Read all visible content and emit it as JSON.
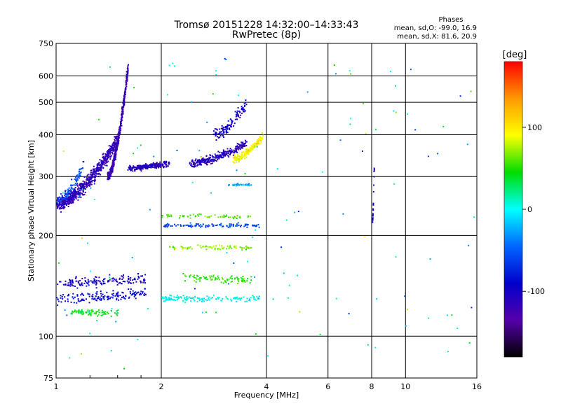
{
  "chart_data": {
    "type": "scatter",
    "title": "Tromsø 20151228 14:32:00–14:33:43",
    "subtitle": "RwPretec (8p)",
    "xlabel": "Frequency [MHz]",
    "ylabel": "Stationary phase Virtual Height [km]",
    "x_scale": "log",
    "y_scale": "log",
    "xlim": [
      1,
      16
    ],
    "ylim": [
      75,
      750
    ],
    "x_ticks": [
      1,
      2,
      4,
      6,
      8,
      10,
      16
    ],
    "y_ticks": [
      75,
      100,
      200,
      300,
      400,
      500,
      600,
      750
    ],
    "grid": true,
    "phases": {
      "heading": "Phases",
      "line1": "mean, sd,O: -99.0, 16.9",
      "line2": "mean, sd,X:  81.6, 20.9"
    },
    "colorbar": {
      "label": "[deg]",
      "range": [
        -180,
        180
      ],
      "ticks": [
        100,
        0,
        -100
      ],
      "colors": [
        "#ff0000",
        "#ff9900",
        "#ffff00",
        "#00dd00",
        "#00ffff",
        "#0066ff",
        "#0000cc",
        "#5500aa",
        "#000000"
      ]
    },
    "traces": [
      {
        "f": [
          1.0,
          1.5
        ],
        "h": [
          250,
          390
        ],
        "phase": -115,
        "spread": 0.07,
        "n": 700
      },
      {
        "f": [
          1.0,
          1.2
        ],
        "h": [
          255,
          330
        ],
        "phase": -60,
        "spread": 0.05,
        "n": 90
      },
      {
        "f": [
          1.4,
          1.6
        ],
        "h": [
          300,
          640
        ],
        "phase": -120,
        "spread": 0.04,
        "n": 500
      },
      {
        "f": [
          1.6,
          2.1
        ],
        "h": [
          320,
          330
        ],
        "phase": -110,
        "spread": 0.03,
        "n": 250
      },
      {
        "f": [
          2.4,
          3.5
        ],
        "h": [
          330,
          380
        ],
        "phase": -110,
        "spread": 0.04,
        "n": 280
      },
      {
        "f": [
          2.8,
          3.5
        ],
        "h": [
          400,
          500
        ],
        "phase": -100,
        "spread": 0.06,
        "n": 120
      },
      {
        "f": [
          3.2,
          3.9
        ],
        "h": [
          340,
          400
        ],
        "phase": 95,
        "spread": 0.04,
        "n": 180
      },
      {
        "f": [
          1.0,
          1.8
        ],
        "h": [
          145,
          150
        ],
        "phase": -100,
        "spread": 0.05,
        "n": 160
      },
      {
        "f": [
          1.0,
          1.8
        ],
        "h": [
          130,
          135
        ],
        "phase": -90,
        "spread": 0.05,
        "n": 150
      },
      {
        "f": [
          1.1,
          1.5
        ],
        "h": [
          118,
          118
        ],
        "phase": 40,
        "spread": 0.03,
        "n": 80
      },
      {
        "f": [
          2.0,
          3.8
        ],
        "h": [
          130,
          130
        ],
        "phase": 0,
        "spread": 0.03,
        "n": 140
      },
      {
        "f": [
          2.0,
          3.8
        ],
        "h": [
          215,
          215
        ],
        "phase": -60,
        "spread": 0.02,
        "n": 110
      },
      {
        "f": [
          2.0,
          3.6
        ],
        "h": [
          230,
          228
        ],
        "phase": 60,
        "spread": 0.02,
        "n": 60
      },
      {
        "f": [
          3.1,
          3.6
        ],
        "h": [
          285,
          285
        ],
        "phase": -30,
        "spread": 0.01,
        "n": 40
      },
      {
        "f": [
          2.1,
          3.6
        ],
        "h": [
          185,
          185
        ],
        "phase": 70,
        "spread": 0.02,
        "n": 80
      },
      {
        "f": [
          2.3,
          3.6
        ],
        "h": [
          150,
          148
        ],
        "phase": 50,
        "spread": 0.04,
        "n": 90
      },
      {
        "f": [
          8.0,
          8.1
        ],
        "h": [
          220,
          320
        ],
        "phase": -100,
        "spread": 0.01,
        "n": 25
      },
      {
        "f": [
          1.0,
          16.0
        ],
        "h": [
          80,
          700
        ],
        "phase": 0,
        "spread": 1.0,
        "n": 130
      }
    ]
  }
}
